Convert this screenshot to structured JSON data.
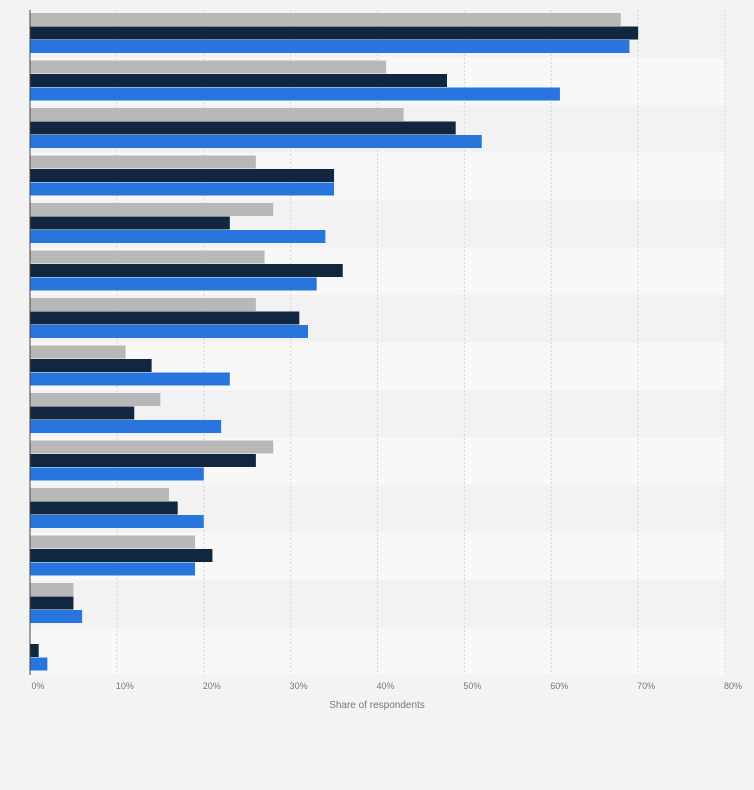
{
  "chart_data": {
    "type": "bar",
    "orientation": "horizontal",
    "title": "",
    "xlabel": "Share of respondents",
    "ylabel": "",
    "xlim": [
      0,
      80
    ],
    "x_ticks": [
      0,
      10,
      20,
      30,
      40,
      50,
      60,
      70,
      80
    ],
    "x_tick_labels": [
      "0%",
      "10%",
      "20%",
      "30%",
      "40%",
      "50%",
      "60%",
      "70%",
      "80%"
    ],
    "grid": true,
    "legend": "none",
    "group_count": 14,
    "series": [
      {
        "color": "#b8b8b8",
        "values": [
          68,
          41,
          43,
          26,
          28,
          27,
          26,
          11,
          15,
          28,
          16,
          19,
          5,
          0
        ]
      },
      {
        "color": "#10273f",
        "values": [
          70,
          48,
          49,
          35,
          23,
          36,
          31,
          14,
          12,
          26,
          17,
          21,
          5,
          1
        ]
      },
      {
        "color": "#2876dd",
        "values": [
          69,
          61,
          52,
          35,
          34,
          33,
          32,
          23,
          22,
          20,
          20,
          19,
          6,
          2
        ]
      }
    ]
  }
}
